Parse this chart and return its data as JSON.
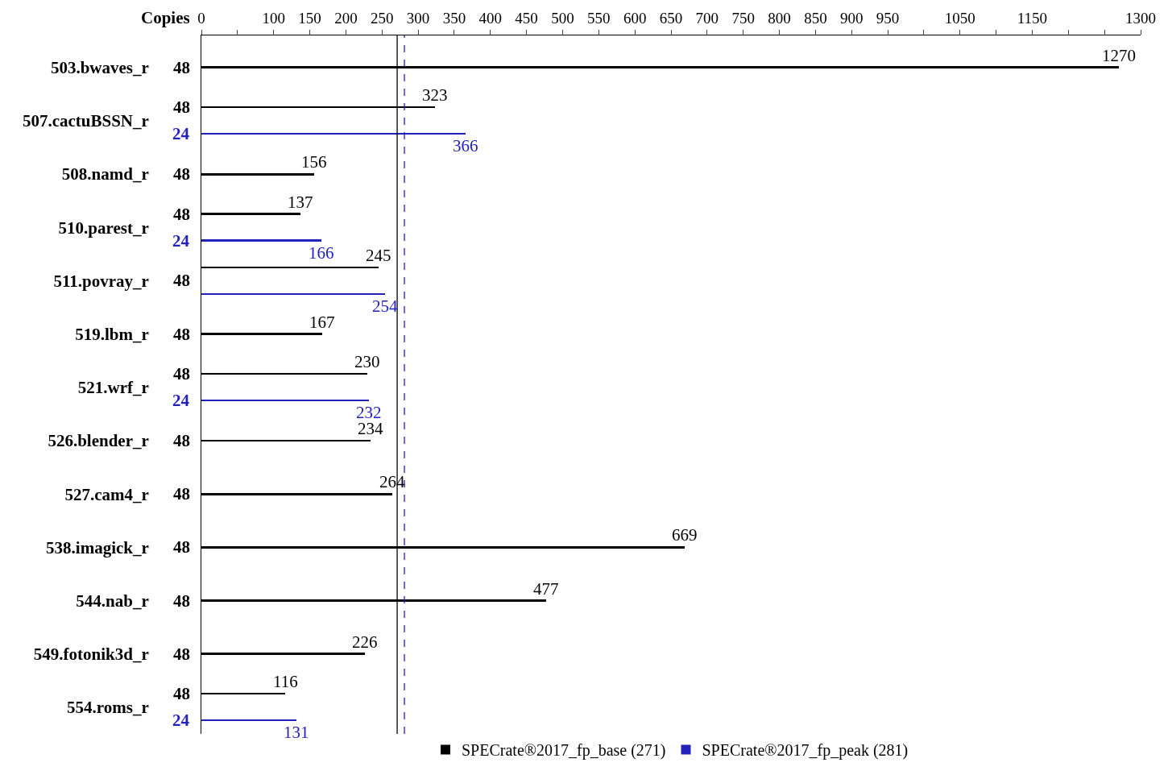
{
  "chart_data": {
    "type": "bar",
    "orientation": "horizontal",
    "ylabel": "Copies",
    "categories": [
      "503.bwaves_r",
      "507.cactuBSSN_r",
      "508.namd_r",
      "510.parest_r",
      "511.povray_r",
      "519.lbm_r",
      "521.wrf_r",
      "526.blender_r",
      "527.cam4_r",
      "538.imagick_r",
      "544.nab_r",
      "549.fotonik3d_r",
      "554.roms_r"
    ],
    "series": [
      {
        "name": "SPECrate®2017_fp_base (271)",
        "color": "#000000",
        "values": [
          1270,
          323,
          156,
          137,
          245,
          167,
          230,
          234,
          264,
          669,
          477,
          226,
          116
        ]
      },
      {
        "name": "SPECrate®2017_fp_peak (281)",
        "color": "#2222bb",
        "values": [
          null,
          366,
          null,
          166,
          254,
          null,
          232,
          null,
          null,
          null,
          null,
          null,
          131
        ]
      }
    ],
    "xlim": [
      0,
      1300
    ],
    "xticks": [
      0,
      {
        "value": 50,
        "label": null
      },
      100,
      150,
      200,
      250,
      300,
      350,
      400,
      450,
      500,
      550,
      600,
      650,
      700,
      750,
      800,
      850,
      900,
      950,
      {
        "value": 1000,
        "label": null
      },
      1050,
      {
        "value": 1100,
        "label": null
      },
      1150,
      {
        "value": 1200,
        "label": null
      },
      {
        "value": 1250,
        "label": null
      },
      1300
    ],
    "ref_lines": [
      {
        "axis": "x",
        "value": 271,
        "color": "#000000",
        "line_style": "solid"
      },
      {
        "axis": "x",
        "value": 281,
        "color": "#2222bb",
        "line_style": "dashed"
      }
    ],
    "annotations": [
      "48",
      "48\n24",
      "48",
      "48\n24",
      "48",
      "48",
      "48\n24",
      "48",
      "48",
      "48",
      "48",
      "48",
      "48\n24"
    ],
    "data_labels": true,
    "legend": "bottom"
  }
}
